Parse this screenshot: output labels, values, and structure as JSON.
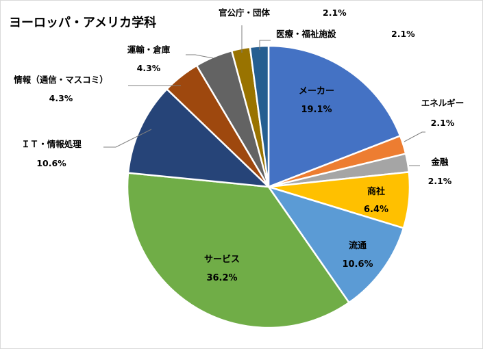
{
  "chart_data": {
    "type": "pie",
    "title": "ヨーロッパ・アメリカ学科",
    "slices": [
      {
        "name": "メーカー",
        "value": 19.1,
        "label": "19.1%",
        "color": "#4472C4"
      },
      {
        "name": "エネルギー",
        "value": 2.1,
        "label": "2.1%",
        "color": "#ED7D31"
      },
      {
        "name": "金融",
        "value": 2.1,
        "label": "2.1%",
        "color": "#A5A5A5"
      },
      {
        "name": "商社",
        "value": 6.4,
        "label": "6.4%",
        "color": "#FFC000"
      },
      {
        "name": "流通",
        "value": 10.6,
        "label": "10.6%",
        "color": "#5B9BD5"
      },
      {
        "name": "サービス",
        "value": 36.2,
        "label": "36.2%",
        "color": "#70AD47"
      },
      {
        "name": "ＩＴ・情報処理",
        "value": 10.6,
        "label": "10.6%",
        "color": "#264478"
      },
      {
        "name": "情報（通信・マスコミ）",
        "value": 4.3,
        "label": "4.3%",
        "color": "#9E480E"
      },
      {
        "name": "運輸・倉庫",
        "value": 4.3,
        "label": "4.3%",
        "color": "#636363"
      },
      {
        "name": "官公庁・団体",
        "value": 2.1,
        "label": "2.1%",
        "color": "#997300"
      },
      {
        "name": "医療・福祉施設",
        "value": 2.1,
        "label": "2.1%",
        "color": "#255E91"
      }
    ]
  }
}
